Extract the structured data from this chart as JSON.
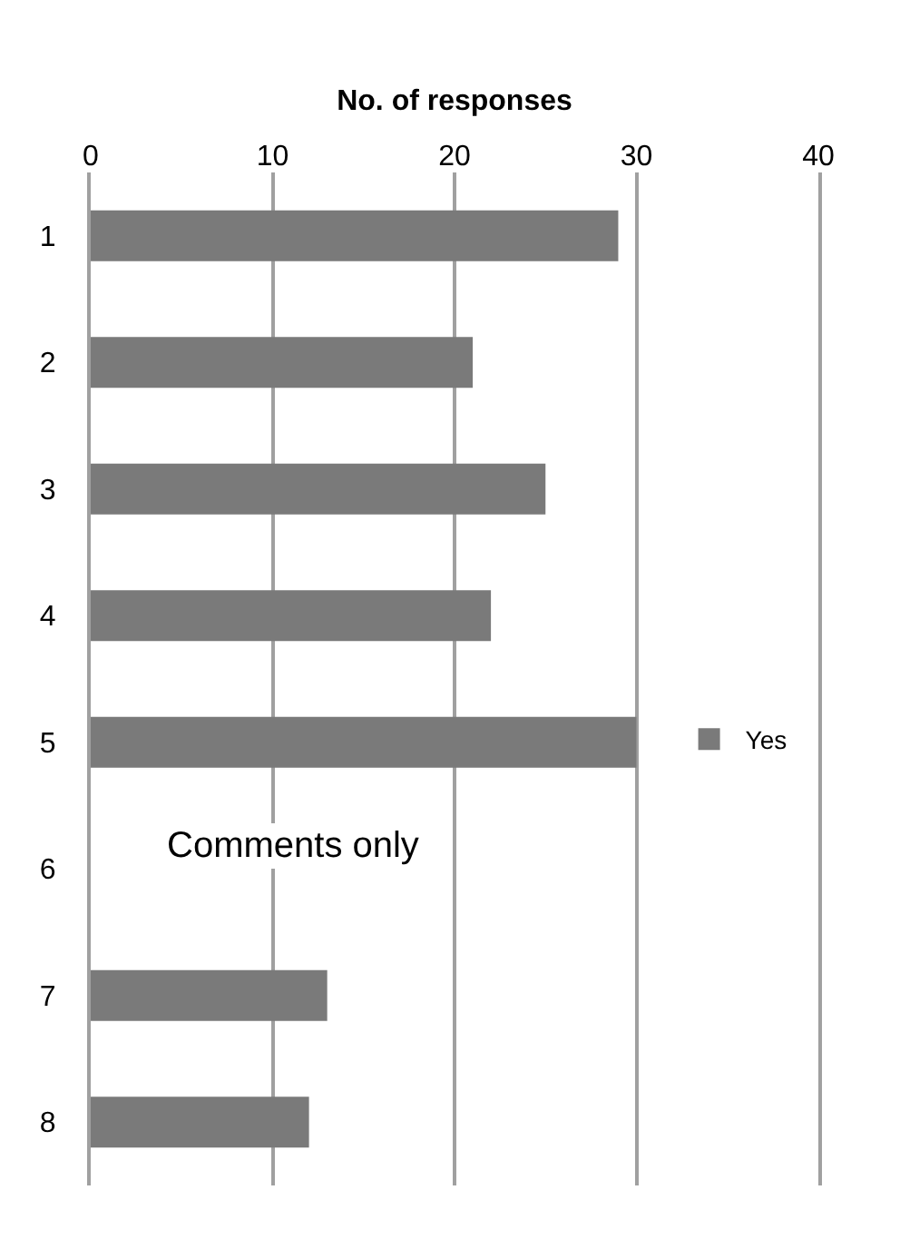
{
  "chart_data": {
    "type": "bar",
    "orientation": "horizontal",
    "xlabel": "No. of responses",
    "categories": [
      "1",
      "2",
      "3",
      "4",
      "5",
      "6",
      "7",
      "8"
    ],
    "series": [
      {
        "name": "Yes",
        "color": "#7a7a7a",
        "values": [
          29,
          21,
          25,
          22,
          30,
          null,
          13,
          12
        ]
      }
    ],
    "xlim": [
      0,
      40
    ],
    "xticks": [
      0,
      10,
      20,
      30,
      40
    ],
    "grid": "x",
    "legend": "right",
    "annotations": [
      "Comments only"
    ]
  }
}
